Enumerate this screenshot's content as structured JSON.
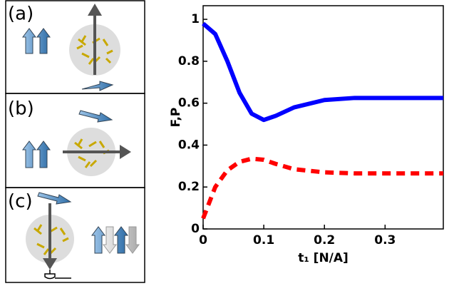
{
  "panels": [
    "(a)",
    "(b)",
    "(c)"
  ],
  "chart_data": {
    "type": "line",
    "xlabel": "t₁ [N/A]",
    "ylabel": "F,P",
    "x": [
      0,
      0.02,
      0.04,
      0.06,
      0.08,
      0.1,
      0.12,
      0.15,
      0.2,
      0.25,
      0.3,
      0.396
    ],
    "series": [
      {
        "color": "#0000ff",
        "style": "solid",
        "values": [
          0.98,
          0.93,
          0.8,
          0.65,
          0.55,
          0.52,
          0.54,
          0.58,
          0.615,
          0.625,
          0.625,
          0.625
        ]
      },
      {
        "color": "#ff0000",
        "style": "dashed",
        "values": [
          0.05,
          0.2,
          0.28,
          0.32,
          0.335,
          0.33,
          0.31,
          0.285,
          0.27,
          0.265,
          0.265,
          0.265
        ]
      }
    ],
    "xlim": [
      0,
      0.396
    ],
    "ylim": [
      0,
      1.065
    ],
    "xticks": [
      0,
      0.1,
      0.2,
      0.3
    ],
    "yticks": [
      0,
      0.2,
      0.4,
      0.6,
      0.8,
      1
    ]
  }
}
